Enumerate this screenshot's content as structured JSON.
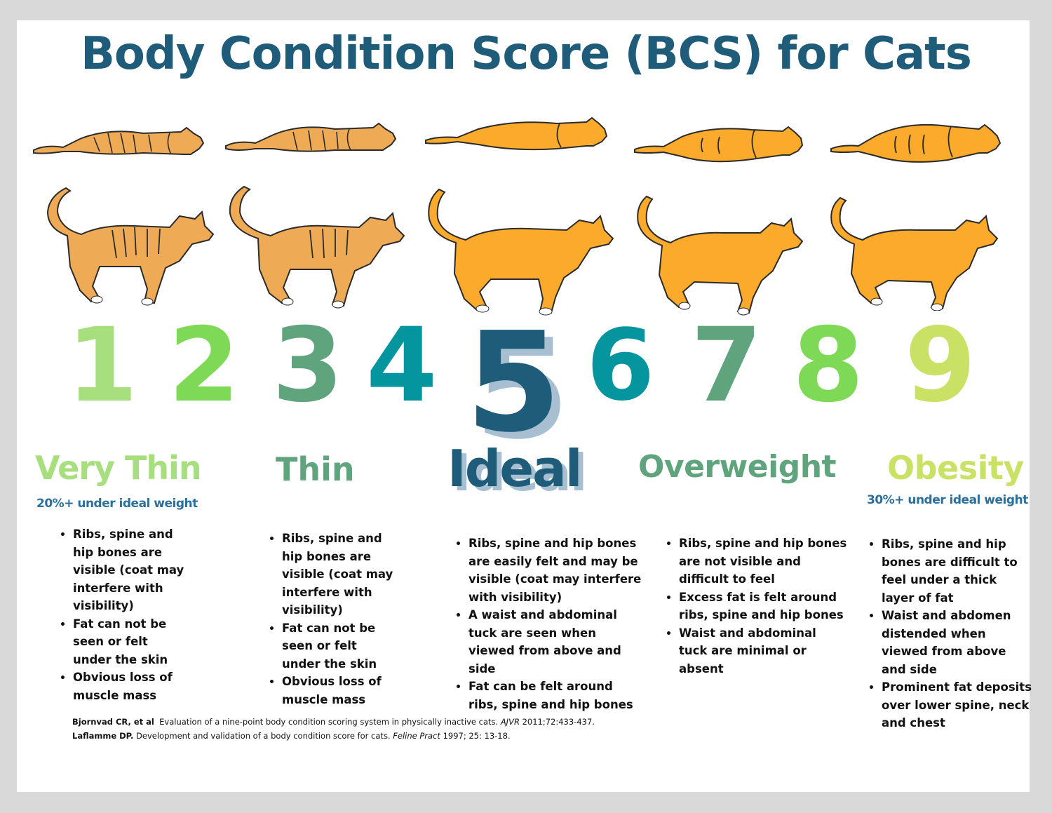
{
  "title": "Body Condition Score (BCS) for Cats",
  "scores": [
    {
      "value": "1",
      "color": "#a7df7e"
    },
    {
      "value": "2",
      "color": "#7ed957"
    },
    {
      "value": "3",
      "color": "#5fa47c"
    },
    {
      "value": "4",
      "color": "#05959e"
    },
    {
      "value": "5",
      "color": "#1f5c7a"
    },
    {
      "value": "6",
      "color": "#05959e"
    },
    {
      "value": "7",
      "color": "#5fa47c"
    },
    {
      "value": "8",
      "color": "#7ed957"
    },
    {
      "value": "9",
      "color": "#c9e265"
    }
  ],
  "categories": [
    {
      "label": "Very Thin",
      "subtitle": "20%+ under ideal weight",
      "color": "#a7df7e",
      "bullets": [
        "Ribs, spine and hip bones are visible (coat may interfere with visibility)",
        "Fat can not be seen or felt under the skin",
        "Obvious loss of muscle mass"
      ]
    },
    {
      "label": "Thin",
      "subtitle": "",
      "color": "#5fa47c",
      "bullets": [
        "Ribs, spine and hip bones are visible (coat may interfere with visibility)",
        "Fat can not be seen or felt under the skin",
        "Obvious loss of muscle mass"
      ]
    },
    {
      "label": "Ideal",
      "subtitle": "",
      "color": "#1f5c7a",
      "bullets": [
        "Ribs, spine and hip bones are easily felt and may be visible (coat may interfere with visibility)",
        "A waist and abdominal tuck are seen when viewed from above and side",
        "Fat can be felt around ribs, spine and hip bones"
      ]
    },
    {
      "label": "Overweight",
      "subtitle": "",
      "color": "#5fa47c",
      "bullets": [
        "Ribs, spine and hip bones are not visible and difficult to feel",
        "Excess fat is felt around ribs, spine and hip bones",
        "Waist and abdominal tuck are minimal or absent"
      ]
    },
    {
      "label": "Obesity",
      "subtitle": "30%+ under ideal weight",
      "color": "#c9e265",
      "bullets": [
        "Ribs, spine and hip bones are difficult to feel under a thick layer of fat",
        "Waist and abdomen distended when viewed from above and side",
        "Prominent fat deposits over lower spine, neck and chest"
      ]
    }
  ],
  "references": [
    {
      "authors": "Bjornvad CR, et al",
      "text": "Evaluation of a nine-point body condition scoring system in physically inactive cats.",
      "journal": "AJVR",
      "citation": "2011;72:433-437."
    },
    {
      "authors": "Laflamme DP.",
      "text": "Development and validation of a body condition score for cats.",
      "journal": "Feline Pract",
      "citation": "1997; 25: 13-18."
    }
  ],
  "cat_colors": {
    "thin": "#eeaa55",
    "ideal": "#fbaa2b",
    "outline": "#2b2b2b"
  },
  "icons": [
    "cat-top-view-illustration",
    "cat-side-view-illustration"
  ]
}
